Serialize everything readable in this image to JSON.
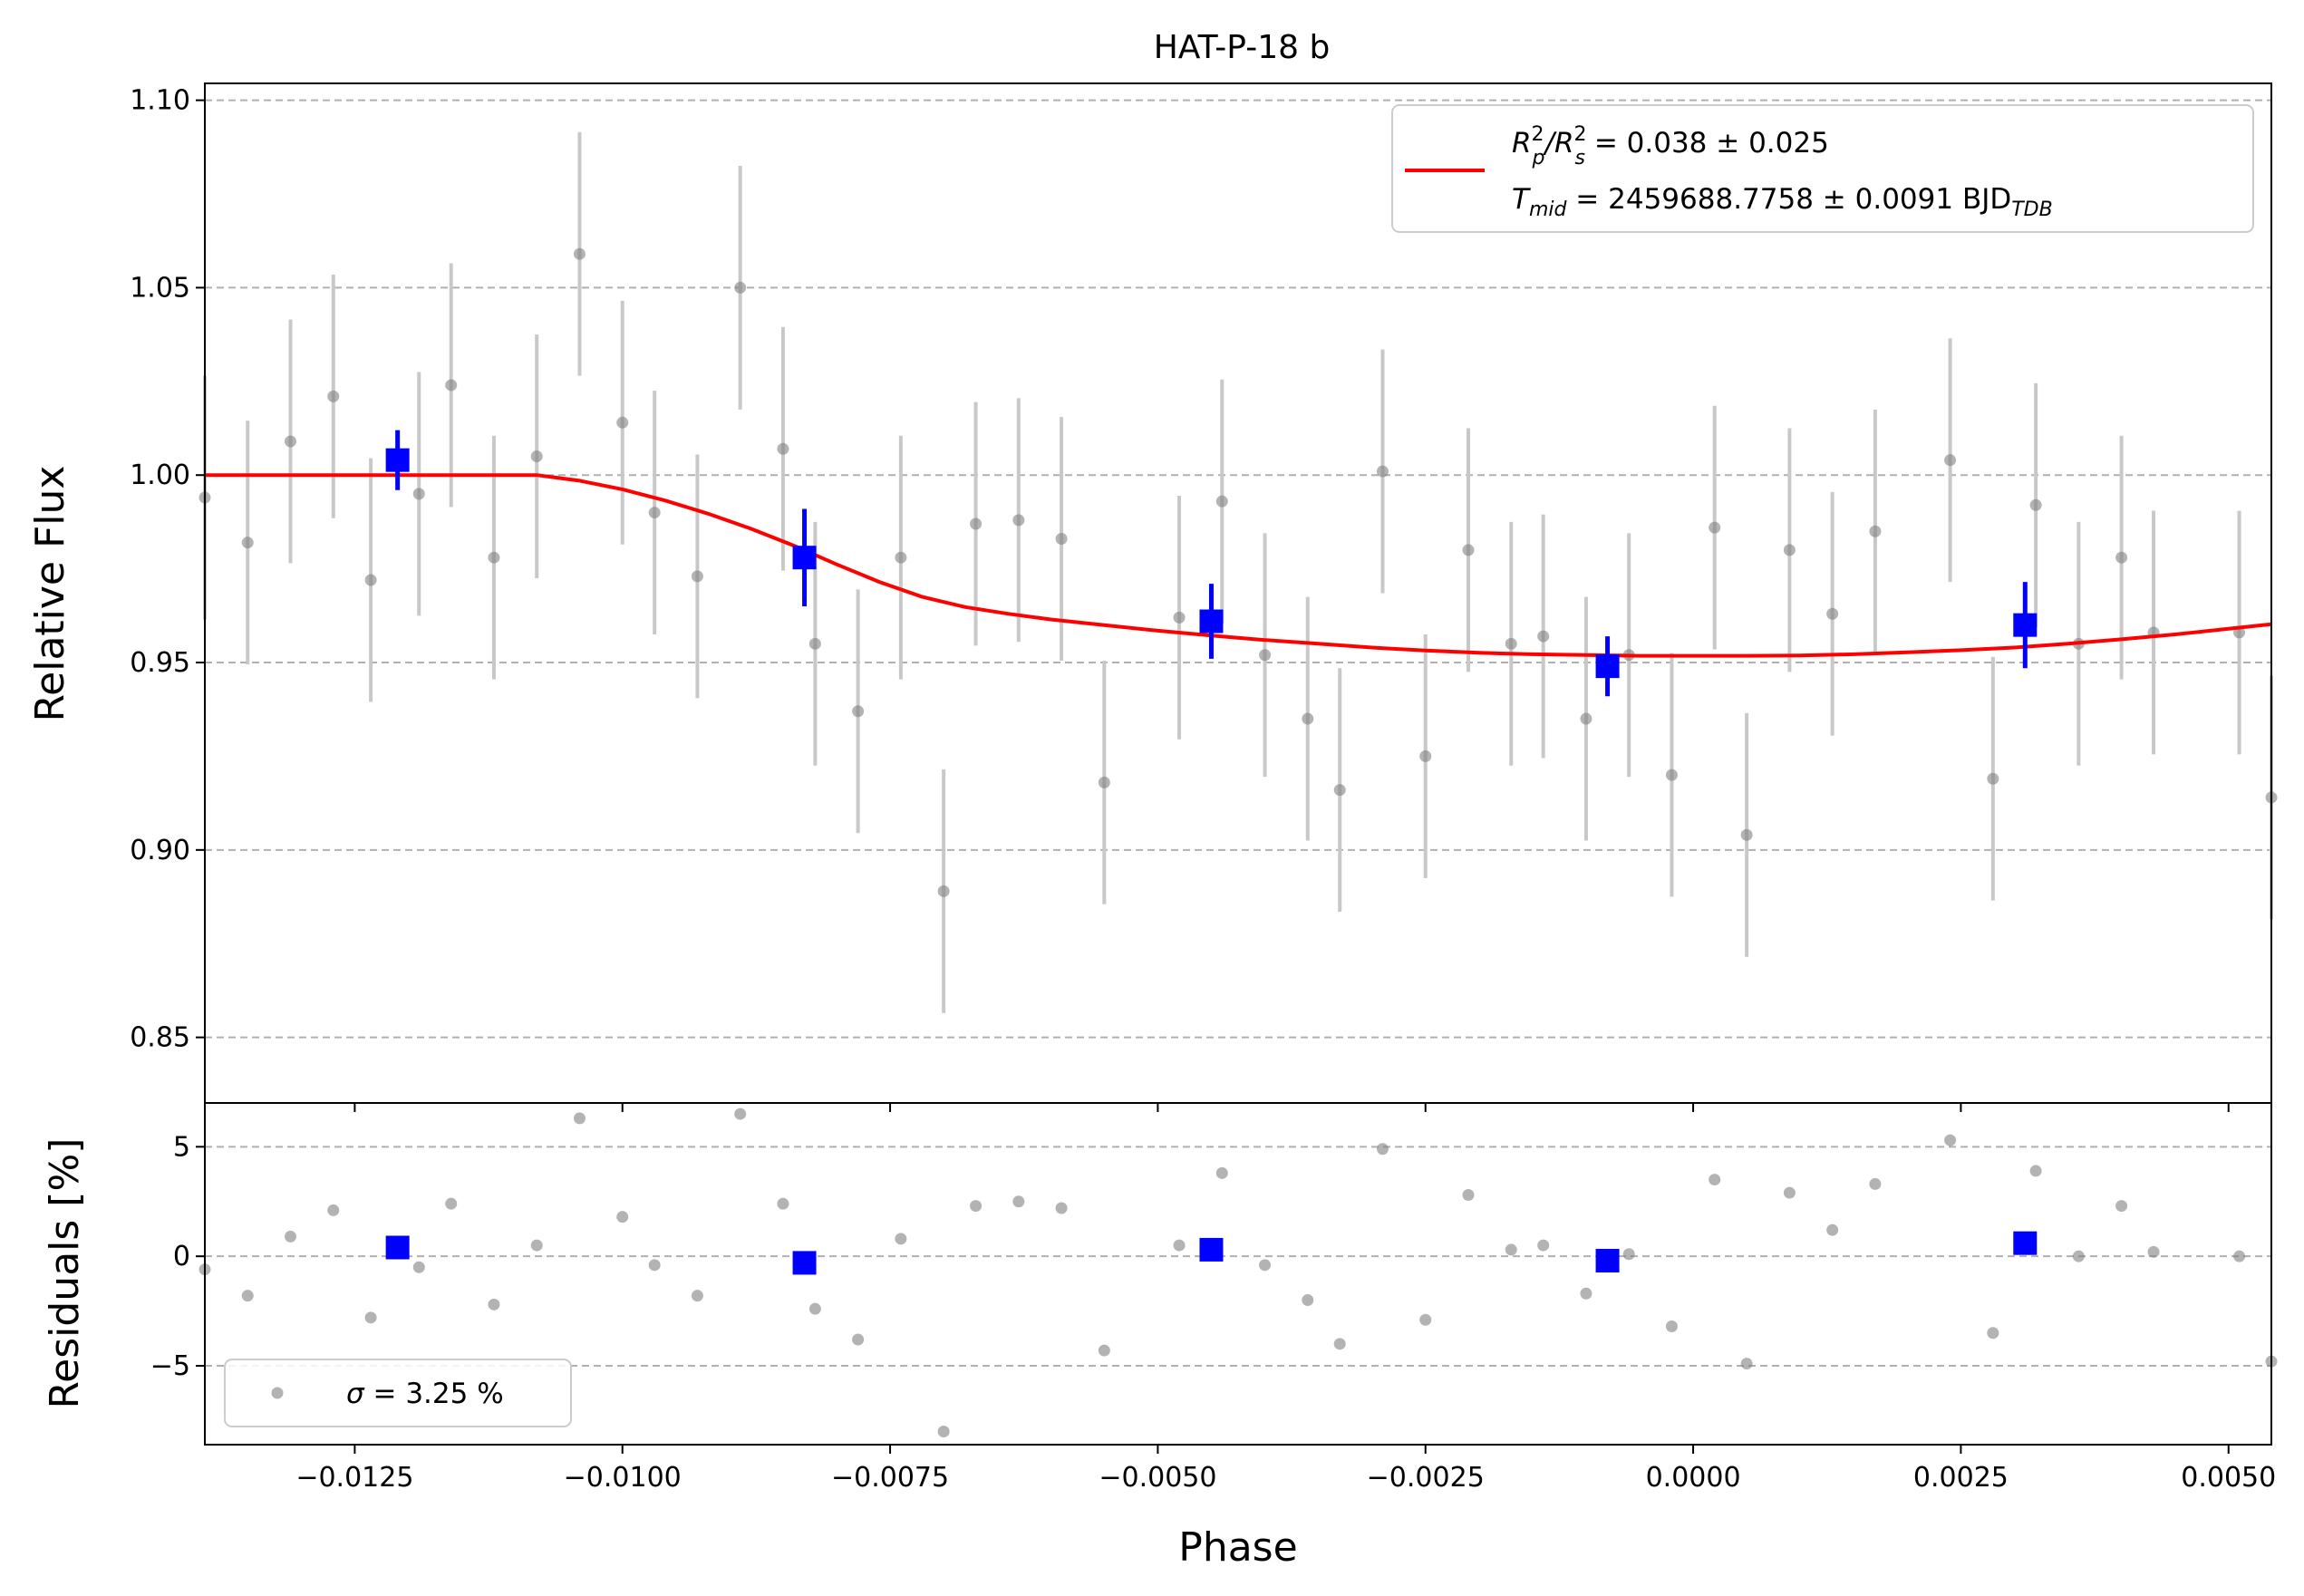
{
  "chart_data": [
    {
      "panel": "main",
      "type": "scatter",
      "title": "HAT-P-18 b",
      "xlabel": "",
      "ylabel": "Relative Flux",
      "xlim": [
        -0.0139,
        0.0054
      ],
      "ylim": [
        0.8325,
        1.1045
      ],
      "yticks": [
        0.85,
        0.9,
        0.95,
        1.0,
        1.05,
        1.1
      ],
      "ytick_labels": [
        "0.85",
        "0.90",
        "0.95",
        "1.00",
        "1.05",
        "1.10"
      ],
      "grid": "horizontal dashed",
      "legend_position": "top-right",
      "legend": {
        "line1": {
          "main": "R",
          "sup1": "2",
          "sub1": "p",
          "slash": "/R",
          "sup2": "2",
          "sub2": "s",
          "rest": " = 0.038 ± 0.025"
        },
        "line2": {
          "main": "T",
          "sub1": "mid",
          "rest": " = 2459688.7758 ± 0.0091 BJD",
          "sub2": "TDB"
        }
      },
      "colors": {
        "raw": "#808080",
        "raw_err": "#c8c8c8",
        "binned": "#0000ff",
        "model": "#ff0000",
        "grid": "#b0b0b0"
      },
      "raw_points": {
        "x": [
          -0.0139,
          -0.0135,
          -0.0131,
          -0.0127,
          -0.01235,
          -0.0119,
          -0.0116,
          -0.0112,
          -0.0108,
          -0.0104,
          -0.01,
          -0.0097,
          -0.0093,
          -0.0089,
          -0.0085,
          -0.0082,
          -0.0078,
          -0.0074,
          -0.007,
          -0.0067,
          -0.0063,
          -0.0059,
          -0.0055,
          -0.0048,
          -0.0044,
          -0.004,
          -0.0036,
          -0.0033,
          -0.0029,
          -0.0025,
          -0.0021,
          -0.0017,
          -0.0014,
          -0.001,
          -0.0006,
          -0.0002,
          0.0002,
          0.0005,
          0.0009,
          0.0013,
          0.0017,
          0.0024,
          0.0028,
          0.0032,
          0.0036,
          0.004,
          0.0043,
          0.0051,
          0.0054
        ],
        "y": [
          0.994,
          0.982,
          1.009,
          1.021,
          0.972,
          0.995,
          1.024,
          0.978,
          1.005,
          1.059,
          1.014,
          0.99,
          0.973,
          1.05,
          1.007,
          0.955,
          0.937,
          0.978,
          0.889,
          0.987,
          0.988,
          0.983,
          0.918,
          0.962,
          0.993,
          0.952,
          0.935,
          0.916,
          1.001,
          0.925,
          0.98,
          0.955,
          0.957,
          0.935,
          0.952,
          0.92,
          0.986,
          0.904,
          0.98,
          0.963,
          0.985,
          1.004,
          0.919,
          0.992,
          0.955,
          0.978,
          0.958,
          0.958,
          0.914
        ],
        "yerr": 0.0325
      },
      "binned_points": {
        "x": [
          -0.0121,
          -0.0083,
          -0.0045,
          -0.0008,
          0.0031
        ],
        "y": [
          1.004,
          0.978,
          0.961,
          0.949,
          0.96
        ],
        "yerr": [
          0.008,
          0.013,
          0.01,
          0.008,
          0.0115
        ]
      },
      "model_curve": {
        "x": [
          -0.0139,
          -0.0108,
          -0.0104,
          -0.01,
          -0.0096,
          -0.0092,
          -0.0088,
          -0.0084,
          -0.008,
          -0.0076,
          -0.0072,
          -0.0068,
          -0.0064,
          -0.006,
          -0.0055,
          -0.005,
          -0.0045,
          -0.004,
          -0.0035,
          -0.003,
          -0.0025,
          -0.002,
          -0.0015,
          -0.001,
          -0.0005,
          0.0,
          0.0005,
          0.001,
          0.0015,
          0.002,
          0.0025,
          0.003,
          0.0035,
          0.004,
          0.0045,
          0.005,
          0.0054
        ],
        "y": [
          1.0,
          1.0,
          0.9985,
          0.9962,
          0.9932,
          0.9897,
          0.9857,
          0.9812,
          0.9762,
          0.9715,
          0.9675,
          0.9648,
          0.963,
          0.9615,
          0.96,
          0.9585,
          0.9572,
          0.956,
          0.955,
          0.954,
          0.9532,
          0.9526,
          0.9522,
          0.952,
          0.9518,
          0.9518,
          0.9518,
          0.9519,
          0.9522,
          0.9527,
          0.9533,
          0.954,
          0.955,
          0.9562,
          0.9575,
          0.959,
          0.9602
        ]
      }
    },
    {
      "panel": "residuals",
      "type": "scatter",
      "xlabel": "Phase",
      "ylabel": "Residuals [%]",
      "xlim": [
        -0.0139,
        0.0054
      ],
      "ylim": [
        -8.6,
        7.0
      ],
      "xticks": [
        -0.0125,
        -0.01,
        -0.0075,
        -0.005,
        -0.0025,
        0.0,
        0.0025,
        0.005
      ],
      "xtick_labels": [
        "−0.0125",
        "−0.0100",
        "−0.0075",
        "−0.0050",
        "−0.0025",
        "0.0000",
        "0.0025",
        "0.0050"
      ],
      "yticks": [
        -5,
        0,
        5
      ],
      "ytick_labels": [
        "−5",
        "0",
        "5"
      ],
      "grid": "horizontal dashed",
      "legend_position": "bottom-left",
      "legend": {
        "symbol": "σ",
        "text": " = 3.25 %"
      },
      "raw_points": {
        "x": [
          -0.0139,
          -0.0135,
          -0.0131,
          -0.0127,
          -0.01235,
          -0.0119,
          -0.0116,
          -0.0112,
          -0.0108,
          -0.0104,
          -0.01,
          -0.0097,
          -0.0093,
          -0.0089,
          -0.0085,
          -0.0082,
          -0.0078,
          -0.0074,
          -0.007,
          -0.0067,
          -0.0063,
          -0.0059,
          -0.0055,
          -0.0048,
          -0.0044,
          -0.004,
          -0.0036,
          -0.0033,
          -0.0029,
          -0.0025,
          -0.0021,
          -0.0017,
          -0.0014,
          -0.001,
          -0.0006,
          -0.0002,
          0.0002,
          0.0005,
          0.0009,
          0.0013,
          0.0017,
          0.0024,
          0.0028,
          0.0032,
          0.0036,
          0.004,
          0.0043,
          0.0051,
          0.0054
        ],
        "y": [
          -0.6,
          -1.8,
          0.9,
          2.1,
          -2.8,
          -0.5,
          2.4,
          -2.2,
          0.5,
          6.3,
          1.8,
          -0.4,
          -1.8,
          6.5,
          2.4,
          -2.4,
          -3.8,
          0.8,
          -8.0,
          2.3,
          2.5,
          2.2,
          -4.3,
          0.5,
          3.8,
          -0.4,
          -2.0,
          -4.0,
          4.9,
          -2.9,
          2.8,
          0.3,
          0.5,
          -1.7,
          0.1,
          -3.2,
          3.5,
          -4.9,
          2.9,
          1.2,
          3.3,
          5.3,
          -3.5,
          3.9,
          0.0,
          2.3,
          0.2,
          0.0,
          -4.8
        ]
      },
      "binned_points": {
        "x": [
          -0.0121,
          -0.0083,
          -0.0045,
          -0.0008,
          0.0031
        ],
        "y": [
          0.4,
          -0.3,
          0.3,
          -0.2,
          0.6
        ]
      }
    }
  ]
}
